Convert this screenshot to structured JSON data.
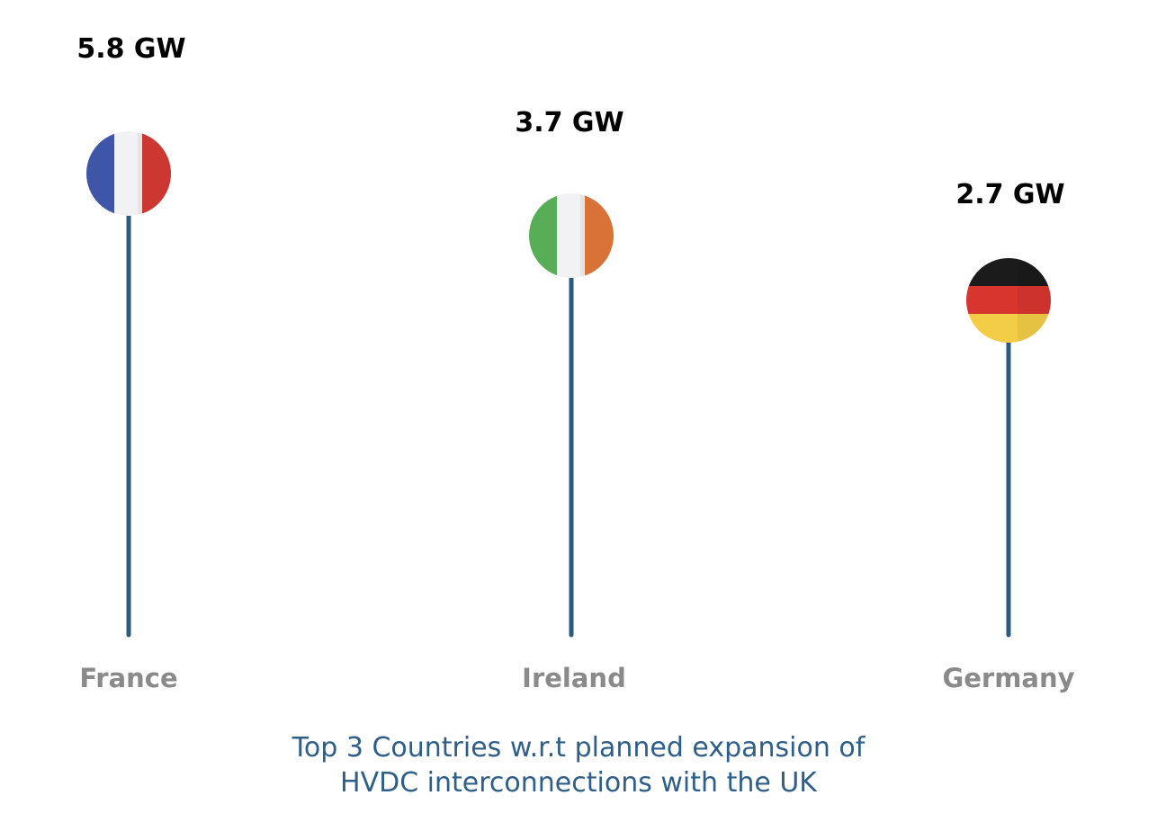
{
  "chart_data": {
    "type": "lollipop",
    "categories": [
      "France",
      "Ireland",
      "Germany"
    ],
    "values": [
      5.8,
      3.7,
      2.7
    ],
    "value_labels": [
      "5.8 GW",
      "3.7 GW",
      "2.7 GW"
    ],
    "unit": "GW",
    "flags": [
      "flag-france-icon",
      "flag-ireland-icon",
      "flag-germany-icon"
    ],
    "title_lines": [
      "Top 3 Countries w.r.t planned expansion of",
      "HVDC interconnections with the UK"
    ],
    "xlabel": "",
    "ylabel": ""
  },
  "colors": {
    "stem": "#2e5a80",
    "value_label": "#000000",
    "category_label": "#8a8a8a",
    "caption": "#2e5f8a",
    "france": [
      "#3f56a8",
      "#f2f2f4",
      "#d93a35"
    ],
    "ireland": [
      "#58ad57",
      "#f2f2f4",
      "#e5793a"
    ],
    "germany": [
      "#1b1b1b",
      "#d8352f",
      "#f2cd45"
    ]
  }
}
